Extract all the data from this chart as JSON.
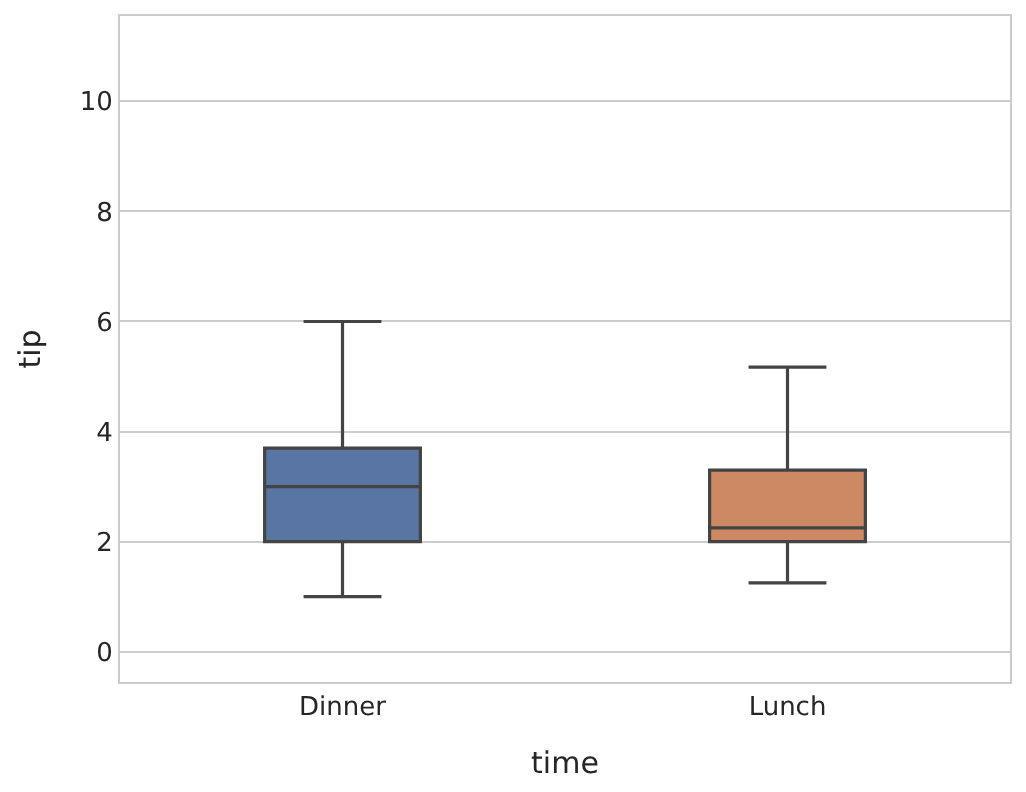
{
  "chart_data": {
    "type": "box",
    "xlabel": "time",
    "ylabel": "tip",
    "categories": [
      "Dinner",
      "Lunch"
    ],
    "colors": [
      "#5875a4",
      "#cc8963"
    ],
    "boxes": [
      {
        "low": 1.0,
        "q1": 2.0,
        "median": 3.0,
        "q3": 3.7,
        "high": 6.0
      },
      {
        "low": 1.25,
        "q1": 2.0,
        "median": 2.25,
        "q3": 3.3,
        "high": 5.17
      }
    ],
    "ylim": [
      -0.55,
      11.55
    ],
    "yticks": [
      0,
      2,
      4,
      6,
      8,
      10
    ],
    "grid": "y"
  }
}
